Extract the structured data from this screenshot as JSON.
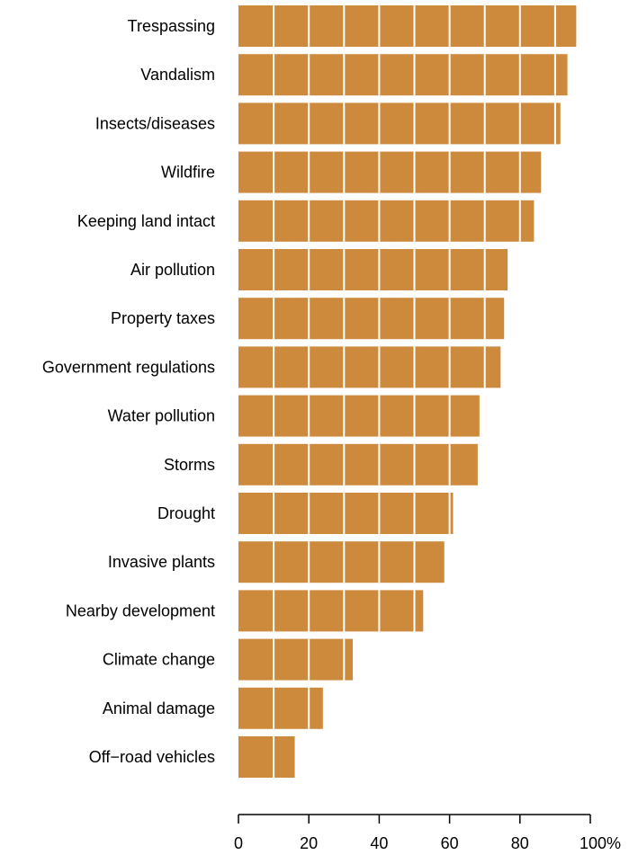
{
  "chart_data": {
    "type": "bar",
    "orientation": "horizontal",
    "categories": [
      "Trespassing",
      "Vandalism",
      "Insects/diseases",
      "Wildfire",
      "Keeping land intact",
      "Air pollution",
      "Property taxes",
      "Government regulations",
      "Water pollution",
      "Storms",
      "Drought",
      "Invasive plants",
      "Nearby development",
      "Climate change",
      "Animal damage",
      "Off−road vehicles"
    ],
    "values": [
      96,
      93.5,
      91.5,
      86,
      84,
      76.5,
      75.5,
      74.5,
      68.5,
      68,
      61,
      58.5,
      52.5,
      32.5,
      24,
      16
    ],
    "xlim": [
      0,
      100
    ],
    "x_ticks": [
      0,
      20,
      40,
      60,
      80,
      100
    ],
    "x_tick_labels": [
      "0",
      "20",
      "40",
      "60",
      "80",
      "100%"
    ],
    "gridlines": "vertical white lines every 10 units over bars",
    "colors": {
      "bar": "#cd8a3d",
      "grid": "#ffffff",
      "axis": "#000000"
    }
  }
}
